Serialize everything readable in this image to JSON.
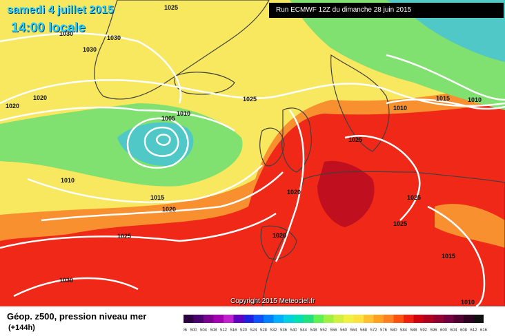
{
  "header": {
    "date_line": "samedi 4 juillet 2015",
    "time_line": "14:00 locale",
    "run_info": "Run ECMWF 12Z du dimanche 28 juin 2015"
  },
  "copyright": "Copyright 2015 Meteociel.fr",
  "footer": {
    "title": "Géop. z500, pression niveau mer",
    "lead": "(+144h)"
  },
  "pressure_labels": [
    "1030",
    "1030",
    "1030",
    "1025",
    "1020",
    "1020",
    "1010",
    "1005",
    "1010",
    "1025",
    "1020",
    "1015",
    "1010",
    "1020",
    "1015",
    "1010",
    "1020",
    "1025",
    "1025",
    "1025",
    "1020",
    "1025",
    "1030",
    "1015",
    "1010"
  ],
  "scale": {
    "colors": [
      "#2a0040",
      "#4b0070",
      "#7a0090",
      "#a000b0",
      "#c020d0",
      "#6000c0",
      "#2020e0",
      "#1050ff",
      "#0080ff",
      "#00b0ff",
      "#00d0e0",
      "#00e0b0",
      "#20e080",
      "#60f050",
      "#a0f040",
      "#d0f040",
      "#f0f040",
      "#ffe040",
      "#ffc030",
      "#ffa020",
      "#ff8020",
      "#ff5010",
      "#f02010",
      "#d00010",
      "#b00020",
      "#900030",
      "#700040",
      "#500030",
      "#300020",
      "#101010"
    ],
    "labels": [
      "496",
      "500",
      "504",
      "508",
      "512",
      "516",
      "520",
      "524",
      "528",
      "532",
      "536",
      "540",
      "544",
      "548",
      "552",
      "556",
      "560",
      "564",
      "568",
      "572",
      "576",
      "580",
      "584",
      "588",
      "592",
      "596",
      "600",
      "604",
      "608",
      "612",
      "616"
    ]
  },
  "colors": {
    "ocean_yellow": "#f8e860",
    "green": "#80e070",
    "orange": "#f89030",
    "red": "#f02818",
    "land_dark": "#404040",
    "isobar": "#ffffff"
  }
}
